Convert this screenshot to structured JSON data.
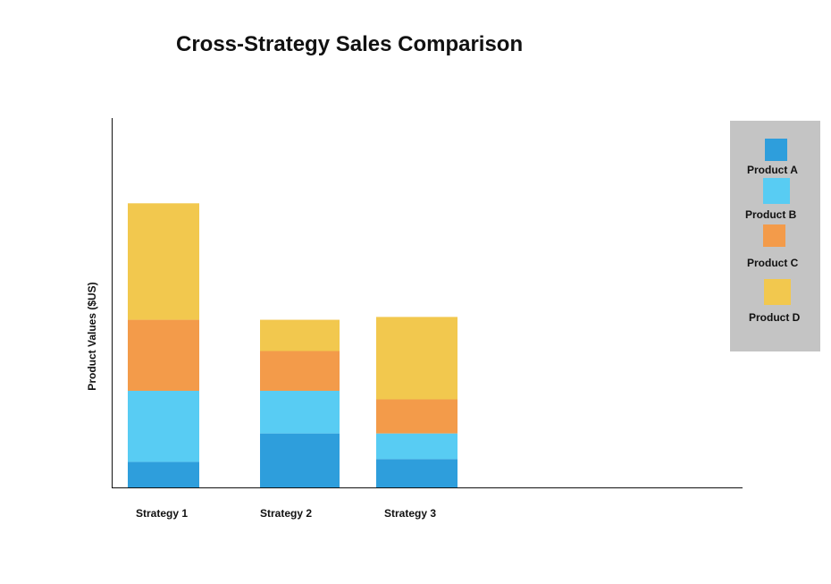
{
  "chart_data": {
    "type": "bar",
    "stacked": true,
    "title": "Cross-Strategy Sales Comparison",
    "xlabel": "",
    "ylabel": "Product Values ($US)",
    "ylim": [
      0,
      130
    ],
    "grid": false,
    "legend_position": "right",
    "categories": [
      "Strategy 1",
      "Strategy 2",
      "Strategy 3"
    ],
    "series": [
      {
        "name": "Product A",
        "color": "#2e9edc",
        "values": [
          9,
          19,
          10
        ]
      },
      {
        "name": "Product B",
        "color": "#58ccf3",
        "values": [
          25,
          15,
          9
        ]
      },
      {
        "name": "Product C",
        "color": "#f39b4a",
        "values": [
          25,
          14,
          12
        ]
      },
      {
        "name": "Product D",
        "color": "#f2c84e",
        "values": [
          41,
          11,
          29
        ]
      }
    ]
  }
}
